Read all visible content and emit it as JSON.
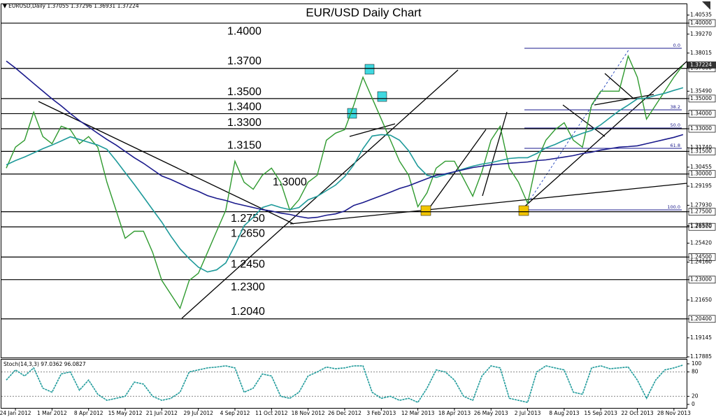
{
  "header": {
    "symbol": "EURUSD,Daily",
    "ohlc": [
      1.37055,
      1.37296,
      1.36931,
      1.37224
    ]
  },
  "chart_data": [
    {
      "type": "line",
      "title": "EUR/USD Daily Chart",
      "categories": [
        null,
        "24 Jan 2012",
        null,
        null,
        null,
        "1 Mar 2012",
        null,
        null,
        null,
        "8 Apr 2012",
        null,
        null,
        null,
        "15 May 2012",
        null,
        null,
        null,
        "21 Jun 2012",
        null,
        null,
        null,
        "29 Jul 2012",
        null,
        null,
        null,
        "4 Sep 2012",
        null,
        null,
        null,
        "11 Oct 2012",
        null,
        null,
        null,
        "18 Nov 2012",
        null,
        null,
        null,
        "26 Dec 2012",
        null,
        null,
        null,
        "3 Feb 2013",
        null,
        null,
        null,
        "12 Mar 2013",
        null,
        null,
        null,
        "18 Apr 2013",
        null,
        null,
        null,
        "26 May 2013",
        null,
        null,
        null,
        "2 Jul 2013",
        null,
        null,
        null,
        "8 Aug 2013",
        null,
        null,
        null,
        "15 Sep 2013",
        null,
        null,
        null,
        "22 Oct 2013",
        null,
        null,
        null,
        "28 Nov 2013",
        null
      ],
      "series": [
        {
          "color": "#2f9a2f",
          "values": [
            1.3039,
            1.3178,
            1.3224,
            1.341,
            1.3248,
            1.3201,
            1.3317,
            1.3294,
            1.3201,
            1.3248,
            1.3178,
            1.2946,
            1.276,
            1.2574,
            1.2621,
            1.2621,
            1.2481,
            1.2295,
            1.2203,
            1.211,
            1.2295,
            1.2342,
            1.2481,
            1.2621,
            1.276,
            1.3085,
            1.2946,
            1.2899,
            1.2992,
            1.3039,
            1.2946,
            1.276,
            1.283,
            1.2946,
            1.2992,
            1.3224,
            1.3271,
            1.3294,
            1.3457,
            1.3642,
            1.3503,
            1.3364,
            1.3224,
            1.3085,
            1.2992,
            1.2783,
            1.2876,
            1.3039,
            1.3085,
            1.3085,
            1.2969,
            1.2853,
            1.3015,
            1.3224,
            1.3317,
            1.3039,
            1.2946,
            1.2806,
            1.3085,
            1.3224,
            1.3294,
            1.334,
            1.3224,
            1.3178,
            1.3457,
            1.3549,
            1.3549,
            1.3549,
            1.3782,
            1.3642,
            1.3364,
            1.3457,
            1.3549,
            1.3642,
            1.3722
          ]
        },
        {
          "color": "#1e9a9a",
          "values": [
            1.3061,
            1.3089,
            1.3113,
            1.314,
            1.3168,
            1.3192,
            1.3219,
            1.3247,
            1.3229,
            1.321,
            1.3192,
            1.3164,
            1.3089,
            1.301,
            1.2931,
            1.2848,
            1.2764,
            1.2681,
            1.2588,
            1.2504,
            1.2439,
            1.2383,
            1.2351,
            1.2365,
            1.2411,
            1.2527,
            1.2657,
            1.2713,
            1.2778,
            1.2797,
            1.2778,
            1.2764,
            1.2778,
            1.2829,
            1.2852,
            1.289,
            1.2927,
            1.2983,
            1.3061,
            1.3168,
            1.3252,
            1.3261,
            1.3257,
            1.3224,
            1.3154,
            1.3052,
            1.2992,
            1.2978,
            1.2996,
            1.3015,
            1.3034,
            1.3052,
            1.3066,
            1.3075,
            1.3089,
            1.3103,
            1.3108,
            1.3108,
            1.3136,
            1.3173,
            1.3196,
            1.3224,
            1.3247,
            1.327,
            1.3289,
            1.3326,
            1.3373,
            1.3419,
            1.3457,
            1.3498,
            1.3503,
            1.3521,
            1.3535,
            1.3554,
            1.3572
          ]
        },
        {
          "color": "#1a1a8c",
          "values": [
            1.3749,
            1.3702,
            1.3651,
            1.36,
            1.3549,
            1.3498,
            1.3452,
            1.3401,
            1.3354,
            1.3312,
            1.327,
            1.3229,
            1.3192,
            1.315,
            1.3108,
            1.3071,
            1.3029,
            1.2987,
            1.2964,
            1.2936,
            1.2908,
            1.2885,
            1.2857,
            1.2839,
            1.2825,
            1.2806,
            1.2792,
            1.2778,
            1.2764,
            1.2755,
            1.2741,
            1.2732,
            1.2718,
            1.2708,
            1.2713,
            1.2727,
            1.2736,
            1.2755,
            1.2792,
            1.2811,
            1.2834,
            1.2857,
            1.288,
            1.2904,
            1.2922,
            1.2946,
            1.2969,
            1.2992,
            1.3001,
            1.3015,
            1.3029,
            1.3043,
            1.3052,
            1.3061,
            1.3066,
            1.3071,
            1.3075,
            1.308,
            1.3089,
            1.3094,
            1.3103,
            1.3113,
            1.3122,
            1.3136,
            1.3145,
            1.3159,
            1.3168,
            1.3178,
            1.3182,
            1.3187,
            1.3201,
            1.3215,
            1.3229,
            1.3243,
            1.3261
          ]
        }
      ],
      "ylim": [
        1.1784,
        1.413
      ],
      "yticks": [
        1.40535,
        {
          "value": 1.4,
          "label": "1.40000"
        },
        {
          "value": 1.3927,
          "label": "1.39270"
        },
        1.38015,
        {
          "value": 1.37,
          "label": "1.37000"
        },
        {
          "value": 1.3549,
          "label": "1.35490"
        },
        {
          "value": 1.35,
          "label": "1.35000"
        },
        {
          "value": 1.34,
          "label": "1.34000"
        },
        {
          "value": 1.33,
          "label": "1.33000"
        },
        {
          "value": 1.3174,
          "label": "1.31740"
        },
        {
          "value": 1.315,
          "label": "1.31500"
        },
        1.30455,
        {
          "value": 1.3,
          "label": "1.30000"
        },
        1.29195,
        {
          "value": 1.2793,
          "label": "1.27930"
        },
        {
          "value": 1.275,
          "label": "1.27500"
        },
        {
          "value": 1.2657,
          "label": "1.26570"
        },
        {
          "value": 1.265,
          "label": "1.26500"
        },
        {
          "value": 1.2542,
          "label": "1.25420"
        },
        {
          "value": 1.245,
          "label": "1.24500"
        },
        {
          "value": 1.2416,
          "label": "1.24160"
        },
        {
          "value": 1.23,
          "label": "1.23000"
        },
        {
          "value": 1.2165,
          "label": "1.21650"
        },
        {
          "value": 1.204,
          "label": "1.20400"
        },
        1.19145,
        1.17885
      ],
      "levels": [
        {
          "value": 1.4,
          "label": "1.4000"
        },
        {
          "value": 1.37,
          "label": "1.3700"
        },
        {
          "value": 1.35,
          "label": "1.3500"
        },
        {
          "value": 1.34,
          "label": "1.3400"
        },
        {
          "value": 1.33,
          "label": "1.3300"
        },
        {
          "value": 1.315,
          "label": "1.3150"
        },
        {
          "value": 1.3,
          "label": "1.3000"
        },
        {
          "value": 1.275,
          "label": "1.2750"
        },
        {
          "value": 1.265,
          "label": "1.2650"
        },
        {
          "value": 1.245,
          "label": "1.2450"
        },
        {
          "value": 1.23,
          "label": "1.2300"
        },
        {
          "value": 1.204,
          "label": "1.2040"
        }
      ],
      "fib_labels": [
        "0.0",
        "38.2",
        "50.0",
        "61.8",
        "100.0"
      ],
      "current_price": 1.37224
    },
    {
      "type": "line",
      "title": "Stoch(14,3,3)",
      "readings": [
        97.0362,
        96.0827
      ],
      "series": [
        {
          "color": "#1e9a9a",
          "values": [
            60,
            85,
            70,
            90,
            40,
            30,
            75,
            80,
            35,
            60,
            25,
            10,
            15,
            20,
            55,
            50,
            20,
            10,
            15,
            30,
            80,
            85,
            90,
            92,
            95,
            90,
            30,
            40,
            75,
            70,
            20,
            15,
            30,
            70,
            80,
            92,
            88,
            90,
            95,
            95,
            30,
            15,
            20,
            10,
            15,
            5,
            40,
            85,
            80,
            60,
            20,
            10,
            70,
            95,
            90,
            15,
            10,
            5,
            80,
            95,
            90,
            85,
            30,
            25,
            90,
            95,
            88,
            90,
            92,
            60,
            15,
            60,
            85,
            90,
            97
          ]
        }
      ],
      "ylim": [
        0,
        100
      ],
      "yticks": [
        0,
        20,
        80,
        100
      ]
    }
  ]
}
